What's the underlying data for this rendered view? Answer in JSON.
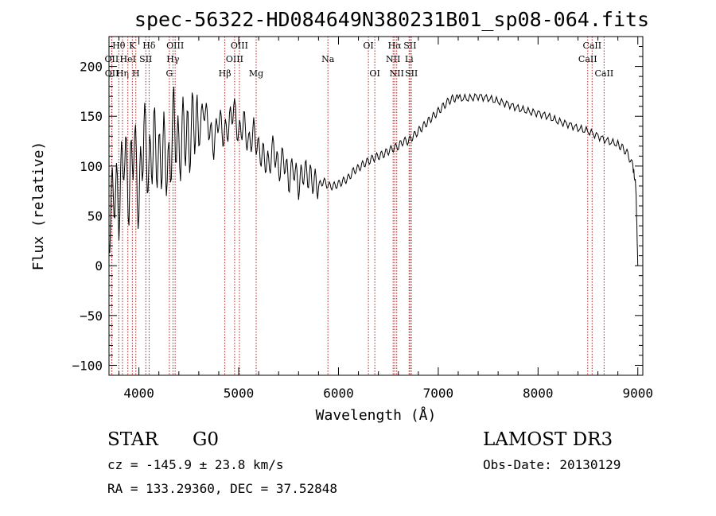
{
  "chart_data": {
    "type": "line",
    "title": "spec-56322-HD084649N380231B01_sp08-064.fits",
    "xlabel": "Wavelength (Å)",
    "ylabel": "Flux (relative)",
    "xlim": [
      3700,
      9050
    ],
    "ylim": [
      -110,
      230
    ],
    "xticks": [
      4000,
      5000,
      6000,
      7000,
      8000,
      9000
    ],
    "yticks": [
      -100,
      -50,
      0,
      50,
      100,
      150,
      200
    ],
    "grid": false,
    "series": [
      {
        "name": "flux",
        "x": [
          3700,
          3750,
          3800,
          3850,
          3900,
          3950,
          4000,
          4050,
          4100,
          4150,
          4200,
          4250,
          4300,
          4350,
          4400,
          4450,
          4500,
          4550,
          4600,
          4650,
          4700,
          4750,
          4800,
          4850,
          4900,
          4950,
          5000,
          5050,
          5100,
          5150,
          5200,
          5250,
          5300,
          5350,
          5400,
          5450,
          5500,
          5550,
          5600,
          5650,
          5700,
          5750,
          5800,
          5850,
          5900,
          5950,
          6000,
          6050,
          6100,
          6150,
          6200,
          6250,
          6300,
          6350,
          6400,
          6450,
          6500,
          6550,
          6600,
          6650,
          6700,
          6750,
          6800,
          6850,
          6900,
          6950,
          7000,
          7050,
          7100,
          7150,
          7200,
          7300,
          7400,
          7500,
          7600,
          7700,
          7800,
          7900,
          8000,
          8100,
          8200,
          8300,
          8400,
          8500,
          8600,
          8700,
          8800,
          8850,
          8900,
          8950,
          8980,
          9000
        ],
        "y": [
          40,
          80,
          60,
          120,
          70,
          130,
          60,
          140,
          90,
          130,
          100,
          120,
          90,
          150,
          110,
          140,
          120,
          150,
          130,
          160,
          140,
          120,
          150,
          130,
          140,
          160,
          130,
          145,
          120,
          135,
          115,
          110,
          100,
          120,
          95,
          110,
          85,
          100,
          80,
          95,
          90,
          85,
          80,
          85,
          80,
          80,
          82,
          85,
          88,
          95,
          98,
          102,
          105,
          108,
          110,
          112,
          115,
          118,
          120,
          125,
          125,
          130,
          135,
          140,
          145,
          150,
          155,
          160,
          165,
          168,
          168,
          168,
          170,
          168,
          165,
          162,
          158,
          155,
          153,
          150,
          145,
          142,
          138,
          135,
          130,
          125,
          122,
          118,
          112,
          100,
          80,
          0
        ]
      }
    ],
    "lines": [
      {
        "label": "Hθ",
        "x": 3798,
        "row": 1
      },
      {
        "label": "OII",
        "x": 3727,
        "row": 2
      },
      {
        "label": "OII",
        "x": 3729,
        "row": 3
      },
      {
        "label": "Hη",
        "x": 3835,
        "row": 3
      },
      {
        "label": "K",
        "x": 3934,
        "row": 1
      },
      {
        "label": "HeI",
        "x": 3889,
        "row": 2
      },
      {
        "label": "H",
        "x": 3969,
        "row": 3
      },
      {
        "label": "Hδ",
        "x": 4102,
        "row": 1
      },
      {
        "label": "SII",
        "x": 4069,
        "row": 2
      },
      {
        "label": "OIII",
        "x": 4363,
        "row": 1
      },
      {
        "label": "Hγ",
        "x": 4341,
        "row": 2
      },
      {
        "label": "G",
        "x": 4305,
        "row": 3
      },
      {
        "label": "Hβ",
        "x": 4861,
        "row": 3
      },
      {
        "label": "OIII",
        "x": 5007,
        "row": 1
      },
      {
        "label": "OIII",
        "x": 4959,
        "row": 2
      },
      {
        "label": "Mg",
        "x": 5175,
        "row": 3
      },
      {
        "label": "Na",
        "x": 5894,
        "row": 2
      },
      {
        "label": "OI",
        "x": 6300,
        "row": 1
      },
      {
        "label": "OI",
        "x": 6364,
        "row": 3
      },
      {
        "label": "Hα",
        "x": 6563,
        "row": 1
      },
      {
        "label": "NII",
        "x": 6548,
        "row": 2
      },
      {
        "label": "NII",
        "x": 6584,
        "row": 3
      },
      {
        "label": "SII",
        "x": 6717,
        "row": 1
      },
      {
        "label": "Li",
        "x": 6708,
        "row": 2
      },
      {
        "label": "SII",
        "x": 6731,
        "row": 3
      },
      {
        "label": "CaII",
        "x": 8542,
        "row": 1
      },
      {
        "label": "CaII",
        "x": 8498,
        "row": 2
      },
      {
        "label": "CaII",
        "x": 8662,
        "row": 3
      }
    ]
  },
  "info": {
    "class": "STAR",
    "subclass": "G0",
    "survey": "LAMOST DR3",
    "cz": "cz = -145.9 ± 23.8 km/s",
    "obs_date": "Obs-Date: 20130129",
    "radec": "RA = 133.29360, DEC =  37.52848"
  }
}
